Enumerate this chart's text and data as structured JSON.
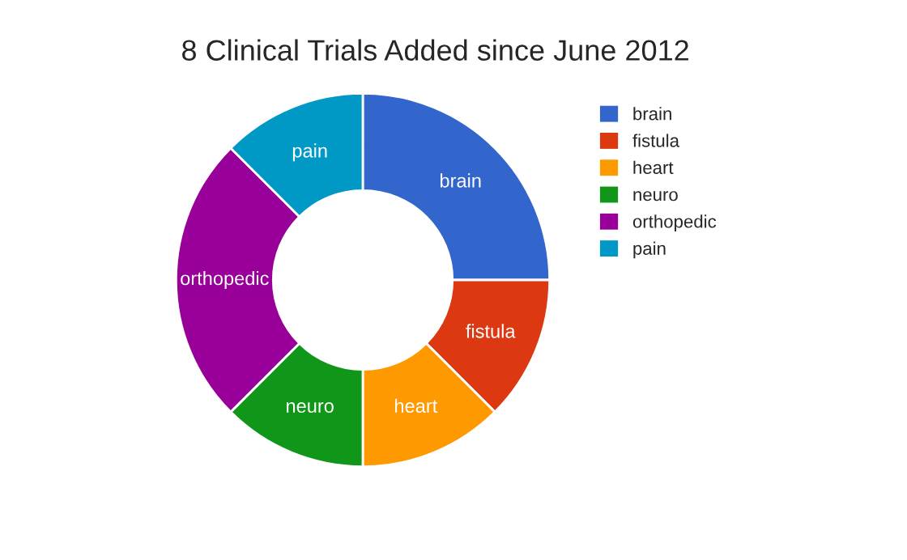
{
  "chart_data": {
    "type": "donut",
    "title": "8 Clinical Trials Added since June 2012",
    "categories": [
      "brain",
      "fistula",
      "heart",
      "neuro",
      "orthopedic",
      "pain"
    ],
    "values": [
      25,
      12.5,
      12.5,
      12.5,
      25,
      12.5
    ],
    "colors": [
      "#3366cc",
      "#dc3912",
      "#ff9900",
      "#109618",
      "#990099",
      "#0099c6"
    ],
    "legend": "right"
  }
}
